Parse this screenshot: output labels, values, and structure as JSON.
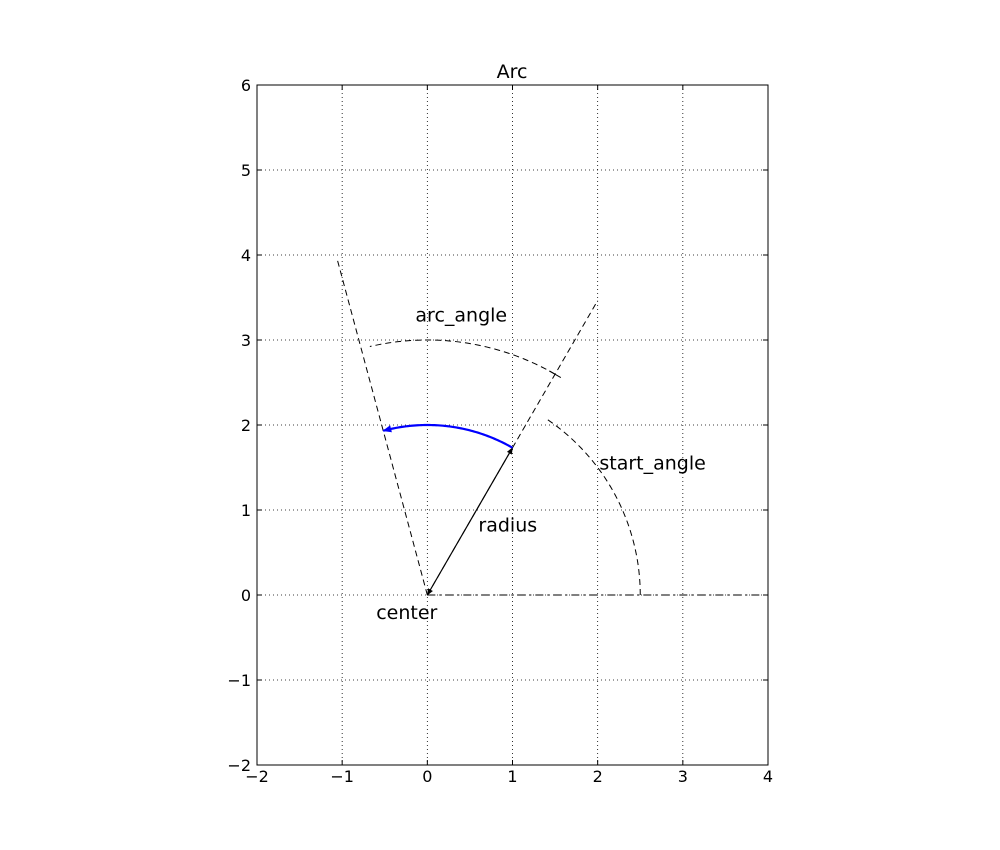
{
  "chart_data": {
    "type": "diagram",
    "title": "Arc",
    "xlim": [
      -2,
      4
    ],
    "ylim": [
      -2,
      6
    ],
    "xticks": [
      -2,
      -1,
      0,
      1,
      2,
      3,
      4
    ],
    "yticks": [
      -2,
      -1,
      0,
      1,
      2,
      3,
      4,
      5,
      6
    ],
    "xtick_labels": [
      "−2",
      "−1",
      "0",
      "1",
      "2",
      "3",
      "4"
    ],
    "ytick_labels": [
      "−2",
      "−1",
      "0",
      "1",
      "2",
      "3",
      "4",
      "5",
      "6"
    ],
    "grid": true,
    "center": [
      0,
      0
    ],
    "radius": 2,
    "start_angle_deg": 60,
    "arc_angle_deg": 45,
    "arc_color": "#0000ff",
    "annotations": [
      {
        "text": "center",
        "x": -0.6,
        "y": -0.2
      },
      {
        "text": "radius",
        "x": 0.6,
        "y": 0.83
      },
      {
        "text": "start_angle",
        "x": 2.02,
        "y": 1.56
      },
      {
        "text": "arc_angle",
        "x": -0.14,
        "y": 3.3
      }
    ]
  }
}
